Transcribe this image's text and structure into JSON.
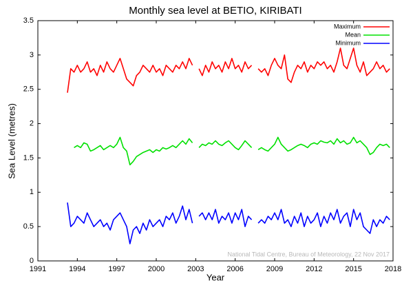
{
  "chart_data": {
    "type": "line",
    "title": "Monthly sea level at BETIO, KIRIBATI",
    "x_label": "Year",
    "y_label": "Sea Level (metres)",
    "annotation": "National Tidal Centre, Bureau of Meteorology, 22 Nov 2017",
    "xlim": [
      1991,
      2018
    ],
    "xticks": [
      1991,
      1994,
      1997,
      2000,
      2003,
      2006,
      2009,
      2012,
      2015,
      2018
    ],
    "ylim": [
      0,
      3.5
    ],
    "yticks": [
      0,
      0.5,
      1,
      1.5,
      2,
      2.5,
      3,
      3.5
    ],
    "grid": false,
    "legend": "upper right",
    "x": [
      1993.25,
      1993.5,
      1993.75,
      1994,
      1994.25,
      1994.5,
      1994.75,
      1995,
      1995.25,
      1995.5,
      1995.75,
      1996,
      1996.25,
      1996.5,
      1996.75,
      1997,
      1997.25,
      1997.5,
      1997.75,
      1998,
      1998.25,
      1998.5,
      1998.75,
      1999,
      1999.25,
      1999.5,
      1999.75,
      2000,
      2000.25,
      2000.5,
      2000.75,
      2001,
      2001.25,
      2001.5,
      2001.75,
      2002,
      2002.25,
      2002.5,
      2002.75,
      2003,
      2003.25,
      2003.5,
      2003.75,
      2004,
      2004.25,
      2004.5,
      2004.75,
      2005,
      2005.25,
      2005.5,
      2005.75,
      2006,
      2006.25,
      2006.5,
      2006.75,
      2007,
      2007.25,
      2007.5,
      2007.75,
      2008,
      2008.25,
      2008.5,
      2008.75,
      2009,
      2009.25,
      2009.5,
      2009.75,
      2010,
      2010.25,
      2010.5,
      2010.75,
      2011,
      2011.25,
      2011.5,
      2011.75,
      2012,
      2012.25,
      2012.5,
      2012.75,
      2013,
      2013.25,
      2013.5,
      2013.75,
      2014,
      2014.25,
      2014.5,
      2014.75,
      2015,
      2015.25,
      2015.5,
      2015.75,
      2016,
      2016.25,
      2016.5,
      2016.75,
      2017,
      2017.25,
      2017.5,
      2017.75
    ],
    "series": [
      {
        "name": "Maximum",
        "color": "#ff0000",
        "values": [
          2.45,
          2.8,
          2.75,
          2.85,
          2.75,
          2.8,
          2.9,
          2.75,
          2.8,
          2.7,
          2.85,
          2.75,
          2.9,
          2.8,
          2.75,
          2.85,
          2.95,
          2.8,
          2.65,
          2.6,
          2.55,
          2.7,
          2.75,
          2.85,
          2.8,
          2.75,
          2.85,
          2.75,
          2.8,
          2.7,
          2.85,
          2.8,
          2.75,
          2.85,
          2.8,
          2.9,
          2.8,
          2.95,
          2.85,
          null,
          2.8,
          2.7,
          2.85,
          2.75,
          2.9,
          2.8,
          2.85,
          2.75,
          2.9,
          2.8,
          2.95,
          2.8,
          2.85,
          2.75,
          2.9,
          2.8,
          2.85,
          null,
          2.8,
          2.75,
          2.8,
          2.7,
          2.85,
          2.95,
          2.85,
          2.8,
          3.0,
          2.65,
          2.6,
          2.75,
          2.85,
          2.8,
          2.9,
          2.75,
          2.85,
          2.8,
          2.9,
          2.85,
          2.9,
          2.8,
          2.85,
          2.75,
          2.9,
          3.1,
          2.85,
          2.8,
          2.95,
          3.1,
          2.85,
          2.75,
          2.9,
          2.7,
          2.75,
          2.8,
          2.9,
          2.8,
          2.85,
          2.75,
          2.8
        ]
      },
      {
        "name": "Mean",
        "color": "#00e000",
        "values": [
          null,
          null,
          1.65,
          1.68,
          1.65,
          1.72,
          1.7,
          1.6,
          1.62,
          1.65,
          1.68,
          1.62,
          1.65,
          1.68,
          1.65,
          1.7,
          1.8,
          1.65,
          1.6,
          1.4,
          1.45,
          1.52,
          1.55,
          1.58,
          1.6,
          1.62,
          1.58,
          1.62,
          1.6,
          1.65,
          1.63,
          1.65,
          1.68,
          1.65,
          1.7,
          1.75,
          1.7,
          1.78,
          1.72,
          null,
          1.65,
          1.7,
          1.68,
          1.72,
          1.7,
          1.75,
          1.7,
          1.68,
          1.72,
          1.75,
          1.7,
          1.65,
          1.62,
          1.68,
          1.75,
          1.7,
          1.65,
          null,
          1.62,
          1.65,
          1.62,
          1.6,
          1.65,
          1.7,
          1.8,
          1.7,
          1.65,
          1.6,
          1.62,
          1.65,
          1.68,
          1.7,
          1.68,
          1.65,
          1.7,
          1.72,
          1.7,
          1.75,
          1.73,
          1.72,
          1.75,
          1.7,
          1.78,
          1.72,
          1.75,
          1.7,
          1.72,
          1.8,
          1.72,
          1.75,
          1.7,
          1.65,
          1.55,
          1.58,
          1.65,
          1.7,
          1.68,
          1.7,
          1.65
        ]
      },
      {
        "name": "Minimum",
        "color": "#0000ff",
        "values": [
          0.85,
          0.5,
          0.55,
          0.65,
          0.6,
          0.55,
          0.7,
          0.6,
          0.5,
          0.55,
          0.6,
          0.5,
          0.55,
          0.45,
          0.6,
          0.65,
          0.7,
          0.6,
          0.5,
          0.25,
          0.45,
          0.5,
          0.4,
          0.55,
          0.45,
          0.6,
          0.5,
          0.55,
          0.6,
          0.5,
          0.65,
          0.6,
          0.7,
          0.55,
          0.65,
          0.8,
          0.6,
          0.75,
          0.55,
          null,
          0.65,
          0.7,
          0.6,
          0.7,
          0.6,
          0.75,
          0.55,
          0.65,
          0.6,
          0.7,
          0.55,
          0.7,
          0.6,
          0.75,
          0.5,
          0.65,
          0.6,
          null,
          0.55,
          0.6,
          0.55,
          0.65,
          0.6,
          0.7,
          0.6,
          0.75,
          0.55,
          0.6,
          0.5,
          0.65,
          0.55,
          0.7,
          0.5,
          0.65,
          0.55,
          0.6,
          0.7,
          0.5,
          0.65,
          0.55,
          0.7,
          0.6,
          0.75,
          0.55,
          0.65,
          0.7,
          0.5,
          0.75,
          0.6,
          0.7,
          0.5,
          0.45,
          0.4,
          0.6,
          0.5,
          0.6,
          0.55,
          0.65,
          0.6
        ]
      }
    ]
  }
}
